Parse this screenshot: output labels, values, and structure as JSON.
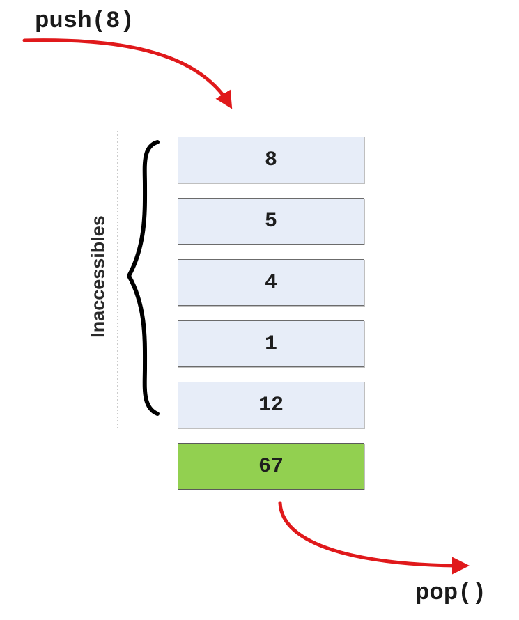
{
  "operations": {
    "push_label": "push(8)",
    "pop_label": "pop()"
  },
  "stack": {
    "items": [
      "8",
      "5",
      "4",
      "1",
      "12",
      "67"
    ],
    "accessible_item": "67"
  },
  "side_label": "Inaccessibles",
  "colors": {
    "arrow": "#e0191b",
    "cell_fill": "#e7edf8",
    "accessible_fill": "#92d050",
    "brace": "#000000"
  }
}
